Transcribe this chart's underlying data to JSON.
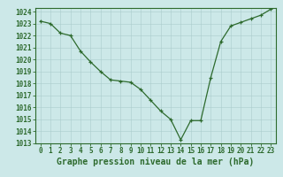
{
  "x": [
    0,
    1,
    2,
    3,
    4,
    5,
    6,
    7,
    8,
    9,
    10,
    11,
    12,
    13,
    14,
    15,
    16,
    17,
    18,
    19,
    20,
    21,
    22,
    23
  ],
  "y": [
    1023.2,
    1023.0,
    1022.2,
    1022.0,
    1020.7,
    1019.8,
    1019.0,
    1018.3,
    1018.2,
    1018.1,
    1017.5,
    1016.6,
    1015.7,
    1015.0,
    1013.3,
    1014.9,
    1014.9,
    1018.5,
    1021.5,
    1022.8,
    1023.1,
    1023.4,
    1023.7,
    1024.2
  ],
  "line_color": "#2d6a2d",
  "marker_color": "#2d6a2d",
  "bg_color": "#cce8e8",
  "grid_color": "#aacccc",
  "border_color": "#2d6a2d",
  "label_color": "#2d6a2d",
  "xlabel": "Graphe pression niveau de la mer (hPa)",
  "ylim": [
    1013,
    1024
  ],
  "xlim_min": -0.5,
  "xlim_max": 23.5,
  "yticks": [
    1013,
    1014,
    1015,
    1016,
    1017,
    1018,
    1019,
    1020,
    1021,
    1022,
    1023,
    1024
  ],
  "xticks": [
    0,
    1,
    2,
    3,
    4,
    5,
    6,
    7,
    8,
    9,
    10,
    11,
    12,
    13,
    14,
    15,
    16,
    17,
    18,
    19,
    20,
    21,
    22,
    23
  ],
  "tick_fontsize": 5.5,
  "xlabel_fontsize": 7,
  "figwidth": 3.2,
  "figheight": 2.0,
  "dpi": 100
}
